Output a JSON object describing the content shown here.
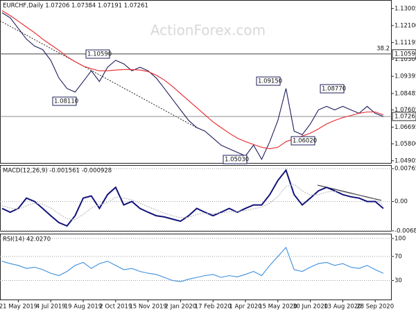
{
  "watermark": "ActionForex.com",
  "chart_data": [
    {
      "type": "line",
      "title": "EURCHF,Daily 1.07206 1.07384 1.07191 1.07261",
      "categories": [
        null,
        null,
        "21 May 2019",
        null,
        null,
        null,
        "4 Jul 2019",
        null,
        null,
        null,
        "19 Aug 2019",
        null,
        null,
        null,
        "2 Oct 2019",
        null,
        null,
        null,
        "15 Nov 2019",
        null,
        null,
        null,
        "2 Jan 2020",
        null,
        null,
        null,
        "17 Feb 2020",
        null,
        null,
        null,
        "1 Apr 2020",
        null,
        null,
        null,
        "15 May 2020",
        null,
        null,
        null,
        "30 Jun 2020",
        null,
        null,
        null,
        "13 Aug 2020",
        null,
        null,
        null,
        "28 Sep 2020",
        null
      ],
      "series": [
        {
          "name": "EURCHF",
          "color": "#1c1c5a",
          "values": [
            1.1278,
            1.1251,
            1.1195,
            1.1138,
            1.1101,
            1.1082,
            1.1025,
            1.0931,
            1.0875,
            1.0856,
            1.0912,
            1.0969,
            1.0912,
            1.0988,
            1.1025,
            1.1006,
            1.0969,
            1.0988,
            1.0969,
            1.0931,
            1.0875,
            1.0818,
            1.0761,
            1.0705,
            1.0667,
            1.0648,
            1.0611,
            1.0573,
            1.0554,
            1.0535,
            1.0516,
            1.0573,
            1.0498,
            1.0592,
            1.0705,
            1.0875,
            1.0648,
            1.0629,
            1.0686,
            1.0761,
            1.078,
            1.0761,
            1.078,
            1.0761,
            1.0743,
            1.078,
            1.0743,
            1.0726
          ]
        },
        {
          "name": "MA",
          "color": "#e8262a",
          "values": [
            1.1289,
            1.1263,
            1.1233,
            1.1202,
            1.1172,
            1.1138,
            1.1108,
            1.1078,
            1.1044,
            1.1018,
            1.0995,
            1.098,
            1.0969,
            1.0969,
            1.0973,
            1.0976,
            1.0976,
            1.0973,
            1.0965,
            1.0946,
            1.092,
            1.0886,
            1.0848,
            1.081,
            1.0773,
            1.0735,
            1.0697,
            1.0667,
            1.0637,
            1.0611,
            1.0592,
            1.0577,
            1.0562,
            1.0554,
            1.0562,
            1.0592,
            1.0607,
            1.0622,
            1.0637,
            1.066,
            1.0686,
            1.0705,
            1.072,
            1.0731,
            1.0743,
            1.075,
            1.075,
            1.0735
          ]
        }
      ],
      "ylim": [
        1.0475,
        1.1346
      ],
      "yticks": [
        1.13005,
        {
          "value": 1.121,
          "label": "1.12100"
        },
        1.11195,
        {
          "value": 1.103,
          "label": "1.10300"
        },
        1.09395,
        1.08485,
        1.07605,
        1.06695,
        {
          "value": 1.058,
          "label": "1.05800"
        },
        1.04905
      ],
      "levels": [
        {
          "value": 1.1059,
          "label": "1.10590",
          "note": "38.2"
        },
        {
          "value": 1.07261,
          "label": "1.07261"
        }
      ],
      "annotations": [
        "1.10590",
        "1.08110",
        "1.05030",
        "1.09150",
        "1.06020",
        "1.08770"
      ],
      "grid": false
    },
    {
      "type": "line",
      "title": "MACD(12,26,9) -0.001561 -0.000928",
      "series": [
        {
          "name": "MACD",
          "color": "#12127a",
          "values": [
            -0.0016,
            -0.0025,
            -0.0016,
            0.0008,
            0,
            -0.0016,
            -0.0033,
            -0.0049,
            -0.0057,
            -0.0033,
            0.0008,
            0.0013,
            -0.0016,
            0.0016,
            0.0033,
            -0.0008,
            0,
            -0.0016,
            -0.0025,
            -0.0033,
            -0.0036,
            -0.0041,
            -0.0046,
            -0.0033,
            -0.0016,
            -0.0025,
            -0.0033,
            -0.0025,
            -0.0016,
            -0.0025,
            -0.0016,
            -0.0008,
            -0.0008,
            0.0016,
            0.0049,
            0.0073,
            0.0016,
            -0.0008,
            0.0008,
            0.0025,
            0.0033,
            0.0025,
            0.0016,
            0.0011,
            0.0008,
            0,
            0,
            -0.0016
          ]
        },
        {
          "name": "Signal",
          "color": "#b8b8b8",
          "values": [
            -0.001,
            -0.0015,
            -0.0018,
            -0.001,
            -0.0004,
            -0.0006,
            -0.0015,
            -0.0028,
            -0.004,
            -0.0042,
            -0.003,
            -0.0015,
            -0.0008,
            -0.0002,
            0.001,
            0.0008,
            0.0004,
            -0.0004,
            -0.0012,
            -0.002,
            -0.0027,
            -0.0033,
            -0.0038,
            -0.0037,
            -0.003,
            -0.0027,
            -0.0028,
            -0.0027,
            -0.0024,
            -0.0023,
            -0.0021,
            -0.0017,
            -0.0013,
            -0.0004,
            0.0012,
            0.0035,
            0.004,
            0.0025,
            0.0015,
            0.0016,
            0.0022,
            0.0024,
            0.0022,
            0.0018,
            0.0014,
            0.0009,
            0.0005,
            -0.0009
          ]
        }
      ],
      "ylim": [
        -0.007,
        0.0085
      ],
      "yticks": [
        0.007655,
        {
          "value": 0,
          "label": "0.00"
        },
        -0.006822
      ],
      "grid": true
    },
    {
      "type": "line",
      "title": "RSI(14) 42.0270",
      "series": [
        {
          "name": "RSI",
          "color": "#3c8fdb",
          "values": [
            62,
            58,
            55,
            50,
            52,
            48,
            42,
            38,
            45,
            55,
            60,
            50,
            58,
            62,
            55,
            48,
            50,
            45,
            42,
            40,
            35,
            30,
            28,
            32,
            35,
            38,
            40,
            35,
            38,
            36,
            40,
            45,
            38,
            55,
            70,
            85,
            48,
            45,
            52,
            58,
            60,
            55,
            58,
            52,
            50,
            55,
            48,
            42.027
          ]
        }
      ],
      "ylim": [
        -3,
        108
      ],
      "yticks": [
        100,
        70,
        30
      ],
      "grid": true
    }
  ]
}
